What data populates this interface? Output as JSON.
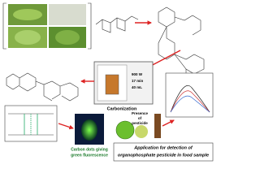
{
  "microwave": [
    "900 W",
    "17 min",
    "40 mL"
  ],
  "carbonization": "Carbonization",
  "carbon_dots": [
    "Carbon dots giving",
    "green fluorescence"
  ],
  "pesticide": [
    "Presence",
    "of",
    "pesticide"
  ],
  "application": [
    "Application for detection of",
    "organophosphate pesticide in food sample"
  ]
}
